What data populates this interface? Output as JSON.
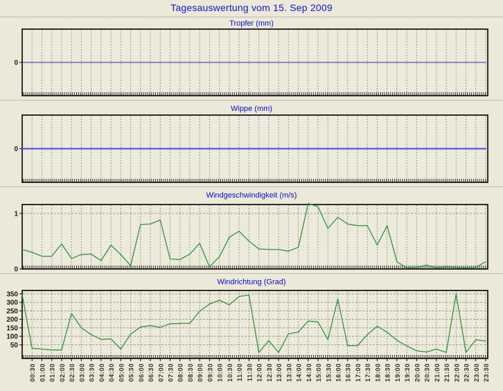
{
  "page": {
    "title": "Tagesauswertung vom 15. Sep 2009"
  },
  "colors": {
    "background": "#ece9d8",
    "plot_background": "#eceadb",
    "plot_border": "#000000",
    "grid": "#9a9a8a",
    "page_title": "#1414cc",
    "chart_title": "#0b0bcc",
    "tick_label": "#1a1a1a",
    "time_label": "#33332a",
    "tropfer_line": "#2828b4",
    "wippe_line": "#4848d8",
    "wind_line": "#2e9340"
  },
  "time_axis": {
    "series_start": "00:00",
    "series_interval_minutes": 30,
    "labels": [
      "00:30",
      "01:00",
      "01:30",
      "02:00",
      "02:30",
      "03:00",
      "03:30",
      "04:00",
      "04:30",
      "05:00",
      "05:30",
      "06:00",
      "06:30",
      "07:00",
      "07:30",
      "08:00",
      "08:30",
      "09:00",
      "09:30",
      "10:00",
      "10:30",
      "11:00",
      "11:30",
      "12:00",
      "12:30",
      "13:00",
      "13:30",
      "14:00",
      "14:30",
      "15:00",
      "15:30",
      "16:00",
      "16:30",
      "17:00",
      "17:30",
      "18:00",
      "18:30",
      "19:00",
      "19:30",
      "20:00",
      "20:30",
      "21:00",
      "21:30",
      "22:00",
      "22:30",
      "23:00",
      "23:30"
    ]
  },
  "chart_data": [
    {
      "type": "line",
      "title": "Tropfer (mm)",
      "ylabel": "mm",
      "ylim": [
        -1,
        1
      ],
      "yticks": [
        0
      ],
      "grid_h": false,
      "line_color": "#2828b4",
      "line_width": 1,
      "values": [
        0,
        0,
        0,
        0,
        0,
        0,
        0,
        0,
        0,
        0,
        0,
        0,
        0,
        0,
        0,
        0,
        0,
        0,
        0,
        0,
        0,
        0,
        0,
        0,
        0,
        0,
        0,
        0,
        0,
        0,
        0,
        0,
        0,
        0,
        0,
        0,
        0,
        0,
        0,
        0,
        0,
        0,
        0,
        0,
        0,
        0,
        0,
        0
      ]
    },
    {
      "type": "line",
      "title": "Wippe (mm)",
      "ylabel": "mm",
      "ylim": [
        -1,
        1
      ],
      "yticks": [
        0
      ],
      "grid_h": false,
      "line_color": "#4848d8",
      "line_width": 2,
      "values": [
        0,
        0,
        0,
        0,
        0,
        0,
        0,
        0,
        0,
        0,
        0,
        0,
        0,
        0,
        0,
        0,
        0,
        0,
        0,
        0,
        0,
        0,
        0,
        0,
        0,
        0,
        0,
        0,
        0,
        0,
        0,
        0,
        0,
        0,
        0,
        0,
        0,
        0,
        0,
        0,
        0,
        0,
        0,
        0,
        0,
        0,
        0,
        0
      ]
    },
    {
      "type": "line",
      "title": "Windgeschwindigkeit (m/s)",
      "ylabel": "m/s",
      "ylim": [
        0,
        1.16
      ],
      "yticks": [
        0,
        1
      ],
      "grid_h": true,
      "line_color": "#2e9340",
      "line_width": 1.3,
      "values": [
        0.35,
        0.3,
        0.23,
        0.23,
        0.45,
        0.19,
        0.26,
        0.27,
        0.15,
        0.43,
        0.26,
        0.06,
        0.8,
        0.81,
        0.88,
        0.18,
        0.17,
        0.27,
        0.46,
        0.04,
        0.22,
        0.57,
        0.68,
        0.5,
        0.36,
        0.35,
        0.35,
        0.32,
        0.39,
        1.18,
        1.12,
        0.73,
        0.93,
        0.81,
        0.78,
        0.78,
        0.43,
        0.78,
        0.13,
        0.02,
        0.03,
        0.07,
        0.02,
        0.04,
        0.03,
        0.02,
        0.03,
        0.13
      ]
    },
    {
      "type": "line",
      "title": "Windrichtung (Grad)",
      "ylabel": "Grad",
      "ylim": [
        -30,
        370
      ],
      "yticks": [
        50,
        100,
        150,
        200,
        250,
        300,
        350
      ],
      "grid_h": true,
      "line_color": "#2e9340",
      "line_width": 1.3,
      "values": [
        345,
        30,
        25,
        20,
        20,
        235,
        150,
        110,
        82,
        85,
        25,
        113,
        155,
        163,
        153,
        174,
        176,
        177,
        248,
        290,
        313,
        285,
        335,
        343,
        5,
        75,
        5,
        115,
        125,
        190,
        185,
        80,
        320,
        45,
        45,
        110,
        160,
        124,
        77,
        43,
        15,
        8,
        25,
        5,
        350,
        5,
        80,
        72
      ]
    }
  ]
}
